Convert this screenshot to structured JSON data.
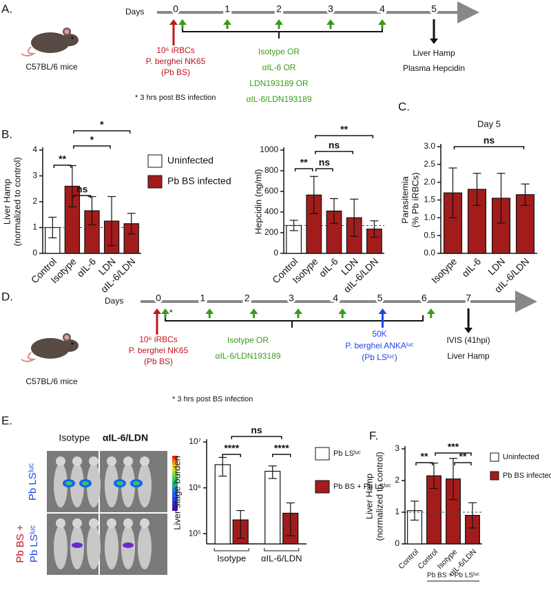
{
  "panel_labels": [
    "A.",
    "B.",
    "C.",
    "D.",
    "E.",
    "F."
  ],
  "timeline_a": {
    "axis_label": "Days",
    "days": [
      0,
      1,
      2,
      3,
      4,
      5
    ],
    "mouse": "C57BL/6 mice",
    "asterisk": "*",
    "infection": [
      "10⁶ iRBCs",
      "P. berghei NK65",
      "(Pb BS)"
    ],
    "treatment": [
      "Isotype OR",
      "αIL-6 OR",
      "LDN193189 OR",
      "αIL-6/LDN193189"
    ],
    "readout": [
      "Liver Hamp",
      "Plasma Hepcidin"
    ],
    "note": "* 3 hrs post BS infection"
  },
  "timeline_d": {
    "axis_label": "Days",
    "days": [
      0,
      1,
      2,
      3,
      4,
      5,
      6,
      7
    ],
    "mouse": "C57BL/6 mice",
    "asterisk": "*",
    "infection": [
      "10⁶ iRBCs",
      "P. berghei NK65",
      "(Pb BS)"
    ],
    "treatment": [
      "Isotype OR",
      "αIL-6/LDN193189"
    ],
    "challenge": [
      "50K",
      "P. berghei ANKAˡᵘᶜ",
      "(Pb LSˡᵘᶜ)"
    ],
    "readout": [
      "IVIS (41hpi)",
      "Liver Hamp"
    ],
    "note": "* 3 hrs post BS infection"
  },
  "imaging": {
    "columns": [
      "Isotype",
      "αIL-6/LDN"
    ],
    "rows": [
      "Pb LSˡᵘᶜ",
      "Pb BS +",
      "Pb LSˡᵘᶜ"
    ]
  },
  "chart_data": [
    {
      "type": "bar",
      "y_label": [
        "Liver Hamp",
        "(normalized to control)"
      ],
      "categories": [
        "Control",
        "Isotype",
        "αIL-6",
        "LDN",
        "αIL-6/LDN"
      ],
      "values": [
        1.0,
        2.6,
        1.65,
        1.25,
        1.15
      ],
      "errors": [
        0.4,
        0.8,
        0.55,
        0.95,
        0.4
      ],
      "colors": [
        "#ffffff",
        "#a31c1c",
        "#a31c1c",
        "#a31c1c",
        "#a31c1c"
      ],
      "ylim": [
        0,
        4
      ],
      "yticks": [
        0,
        1,
        2,
        3,
        4
      ],
      "reference_line": 1,
      "significance": [
        "**",
        "ns",
        "*",
        "*"
      ],
      "legend": [
        {
          "name": "Uninfected",
          "color": "#ffffff"
        },
        {
          "name": "Pb BS infected",
          "color": "#a31c1c"
        }
      ]
    },
    {
      "type": "bar",
      "y_label": [
        "Hepcidin (ng/ml)"
      ],
      "categories": [
        "Control",
        "Isotype",
        "αIL-6",
        "LDN",
        "αIL-6/LDN"
      ],
      "values": [
        270,
        565,
        410,
        345,
        235
      ],
      "errors": [
        50,
        180,
        120,
        180,
        80
      ],
      "colors": [
        "#ffffff",
        "#a31c1c",
        "#a31c1c",
        "#a31c1c",
        "#a31c1c"
      ],
      "ylim": [
        0,
        1000
      ],
      "yticks": [
        0,
        200,
        400,
        600,
        800,
        1000
      ],
      "reference_line": 270,
      "significance": [
        "**",
        "ns",
        "ns",
        "**"
      ]
    },
    {
      "type": "bar",
      "title": "Day 5",
      "y_label": [
        "Parasitemia",
        "(% Pb iRBCs)"
      ],
      "categories": [
        "Isotype",
        "αIL-6",
        "LDN",
        "αIL-6/LDN"
      ],
      "values": [
        1.7,
        1.8,
        1.55,
        1.65
      ],
      "errors": [
        0.7,
        0.45,
        0.7,
        0.3
      ],
      "colors": [
        "#a31c1c",
        "#a31c1c",
        "#a31c1c",
        "#a31c1c"
      ],
      "ylim": [
        0,
        3
      ],
      "yticks": [
        {
          "value": 0,
          "label": "0.0"
        },
        {
          "value": 0.5,
          "label": "0.5"
        },
        {
          "value": 1,
          "label": "1.0"
        },
        {
          "value": 1.5,
          "label": "1.5"
        },
        {
          "value": 2,
          "label": "2.0"
        },
        {
          "value": 2.5,
          "label": "2.5"
        },
        {
          "value": 3,
          "label": "3.0"
        }
      ],
      "significance": [
        "ns"
      ]
    },
    {
      "type": "grouped_bar",
      "log": true,
      "y_label": [
        "Liver stage burden"
      ],
      "categories": [
        "Isotype",
        "αIL-6/LDN"
      ],
      "series": [
        {
          "name": "Pb LSˡᵘᶜ",
          "color": "#ffffff",
          "values": [
            3200000,
            2300000
          ],
          "errors": [
            1400000,
            700000
          ]
        },
        {
          "name": "Pb BS + Pb LSˡᵘᶜ",
          "color": "#a31c1c",
          "values": [
            200000,
            280000
          ],
          "errors": [
            120000,
            190000
          ]
        }
      ],
      "ylim": [
        60000,
        10000000
      ],
      "yticks": [
        {
          "value": 100000,
          "label": "10⁵"
        },
        {
          "value": 1000000,
          "label": "10⁶"
        },
        {
          "value": 10000000,
          "label": "10⁷"
        }
      ],
      "significance": [
        "****",
        "****",
        "ns"
      ]
    },
    {
      "type": "bar",
      "y_label": [
        "Liver Hamp",
        "(normalized to control)"
      ],
      "categories": [
        "Control",
        "Control",
        "Isotype",
        "αIL-6/LDN"
      ],
      "values": [
        1.05,
        2.15,
        2.05,
        0.9
      ],
      "errors": [
        0.3,
        0.4,
        0.65,
        0.4
      ],
      "colors": [
        "#ffffff",
        "#a31c1c",
        "#a31c1c",
        "#a31c1c"
      ],
      "ylim": [
        0,
        3
      ],
      "yticks": [
        0,
        1,
        2,
        3
      ],
      "reference_line": 1,
      "significance": [
        "**",
        "***",
        "**"
      ],
      "group_label": "Pb BS + Pb LSˡᵘᶜ",
      "legend": [
        {
          "name": "Uninfected",
          "color": "#ffffff"
        },
        {
          "name": "Pb BS infected",
          "color": "#a31c1c"
        }
      ]
    }
  ]
}
